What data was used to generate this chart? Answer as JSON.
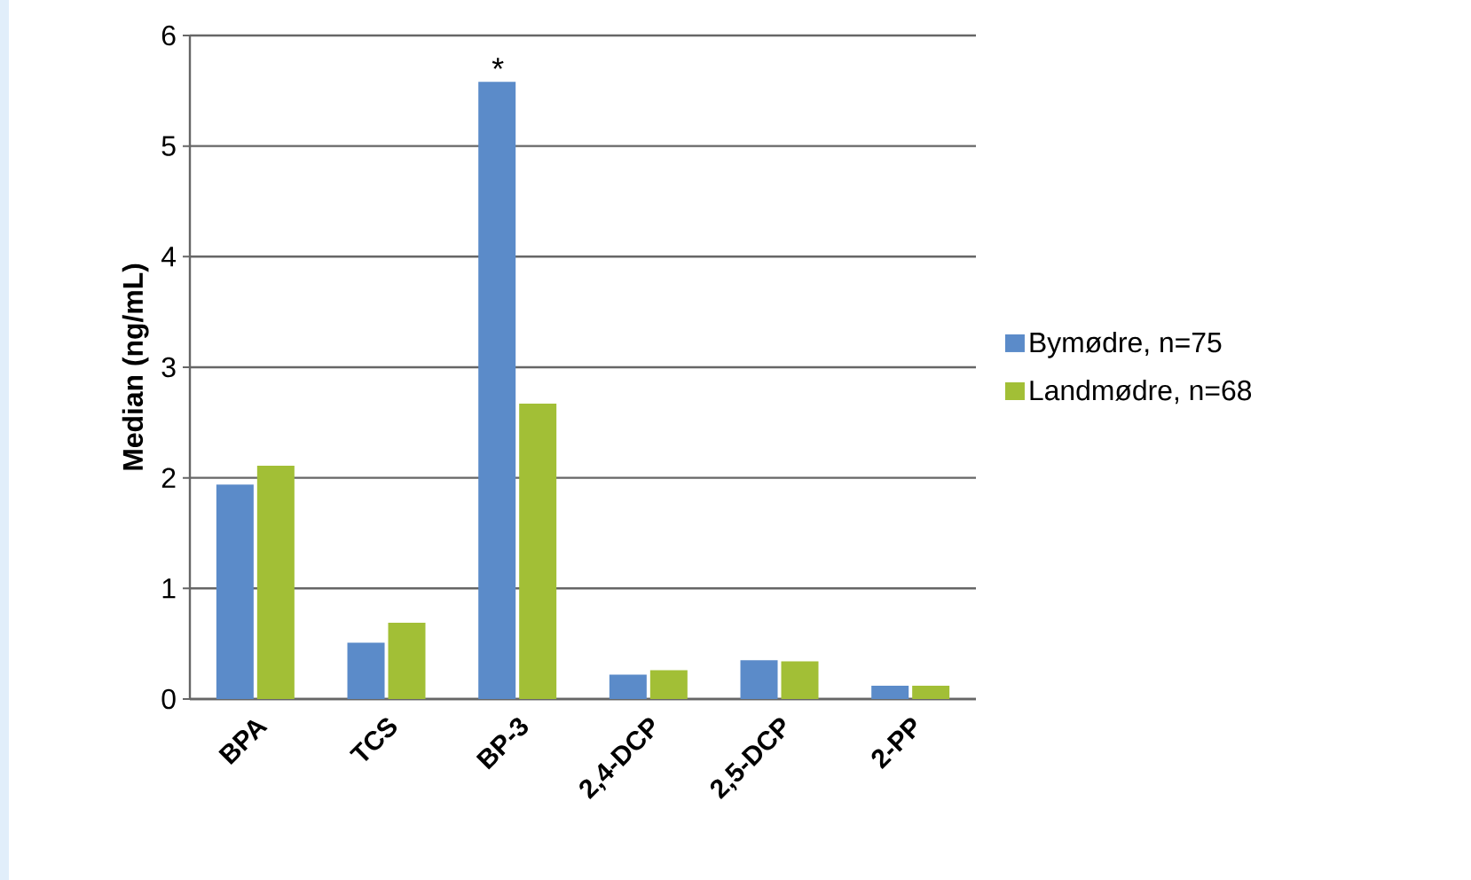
{
  "chart_data": {
    "type": "bar",
    "ylabel": "Median (ng/mL)",
    "categories": [
      "BPA",
      "TCS",
      "BP-3",
      "2,4-DCP",
      "2,5-DCP",
      "2-PP"
    ],
    "series": [
      {
        "name": "Bymødre, n=75",
        "color": "#5b8bc9",
        "values": [
          1.94,
          0.51,
          5.58,
          0.22,
          0.35,
          0.12
        ]
      },
      {
        "name": "Landmødre, n=68",
        "color": "#a2bf36",
        "values": [
          2.11,
          0.69,
          2.67,
          0.26,
          0.34,
          0.12
        ]
      }
    ],
    "ylim": [
      0,
      6
    ],
    "yticks": [
      0,
      1,
      2,
      3,
      4,
      5,
      6
    ],
    "grid": "y",
    "legend": "right",
    "annotations": [
      {
        "text": "*",
        "x": "BP-3",
        "y": 5.58
      }
    ]
  }
}
